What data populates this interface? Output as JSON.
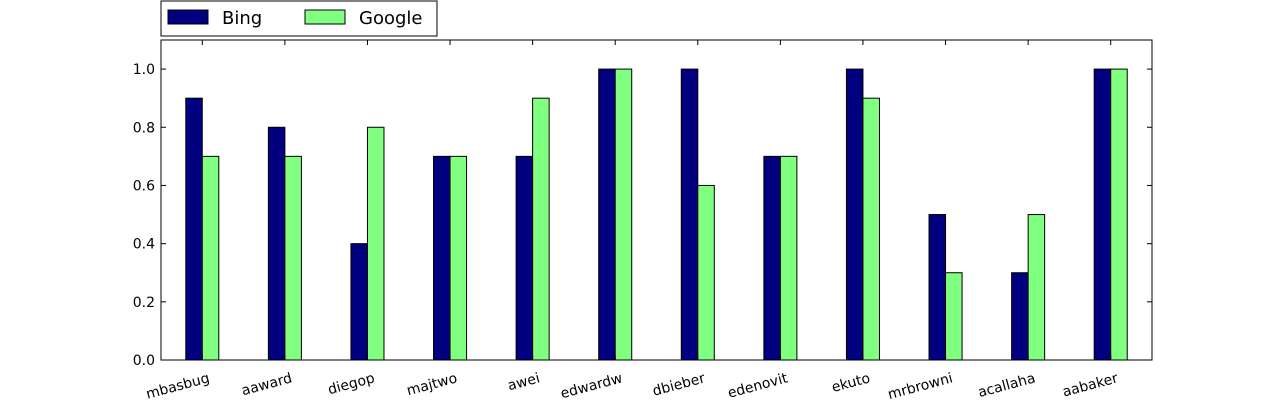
{
  "chart_data": {
    "type": "bar",
    "categories": [
      "mbasbug",
      "aaward",
      "diegop",
      "majtwo",
      "awei",
      "edwardw",
      "dbieber",
      "edenovit",
      "ekuto",
      "mrbrowni",
      "acallaha",
      "aabaker"
    ],
    "series": [
      {
        "name": "Bing",
        "color": "#000080",
        "values": [
          0.9,
          0.8,
          0.4,
          0.7,
          0.7,
          1.0,
          1.0,
          0.7,
          1.0,
          0.5,
          0.3,
          1.0
        ]
      },
      {
        "name": "Google",
        "color": "#80ff80",
        "values": [
          0.7,
          0.7,
          0.8,
          0.7,
          0.9,
          1.0,
          0.6,
          0.7,
          0.9,
          0.3,
          0.5,
          1.0
        ]
      }
    ],
    "ylim": [
      0,
      1.1
    ],
    "yticks": [
      0.0,
      0.2,
      0.4,
      0.6,
      0.8,
      1.0
    ],
    "ytick_labels": [
      "0.0",
      "0.2",
      "0.4",
      "0.6",
      "0.8",
      "1.0"
    ],
    "legend_position": "top-left, above plot",
    "grid": false
  }
}
